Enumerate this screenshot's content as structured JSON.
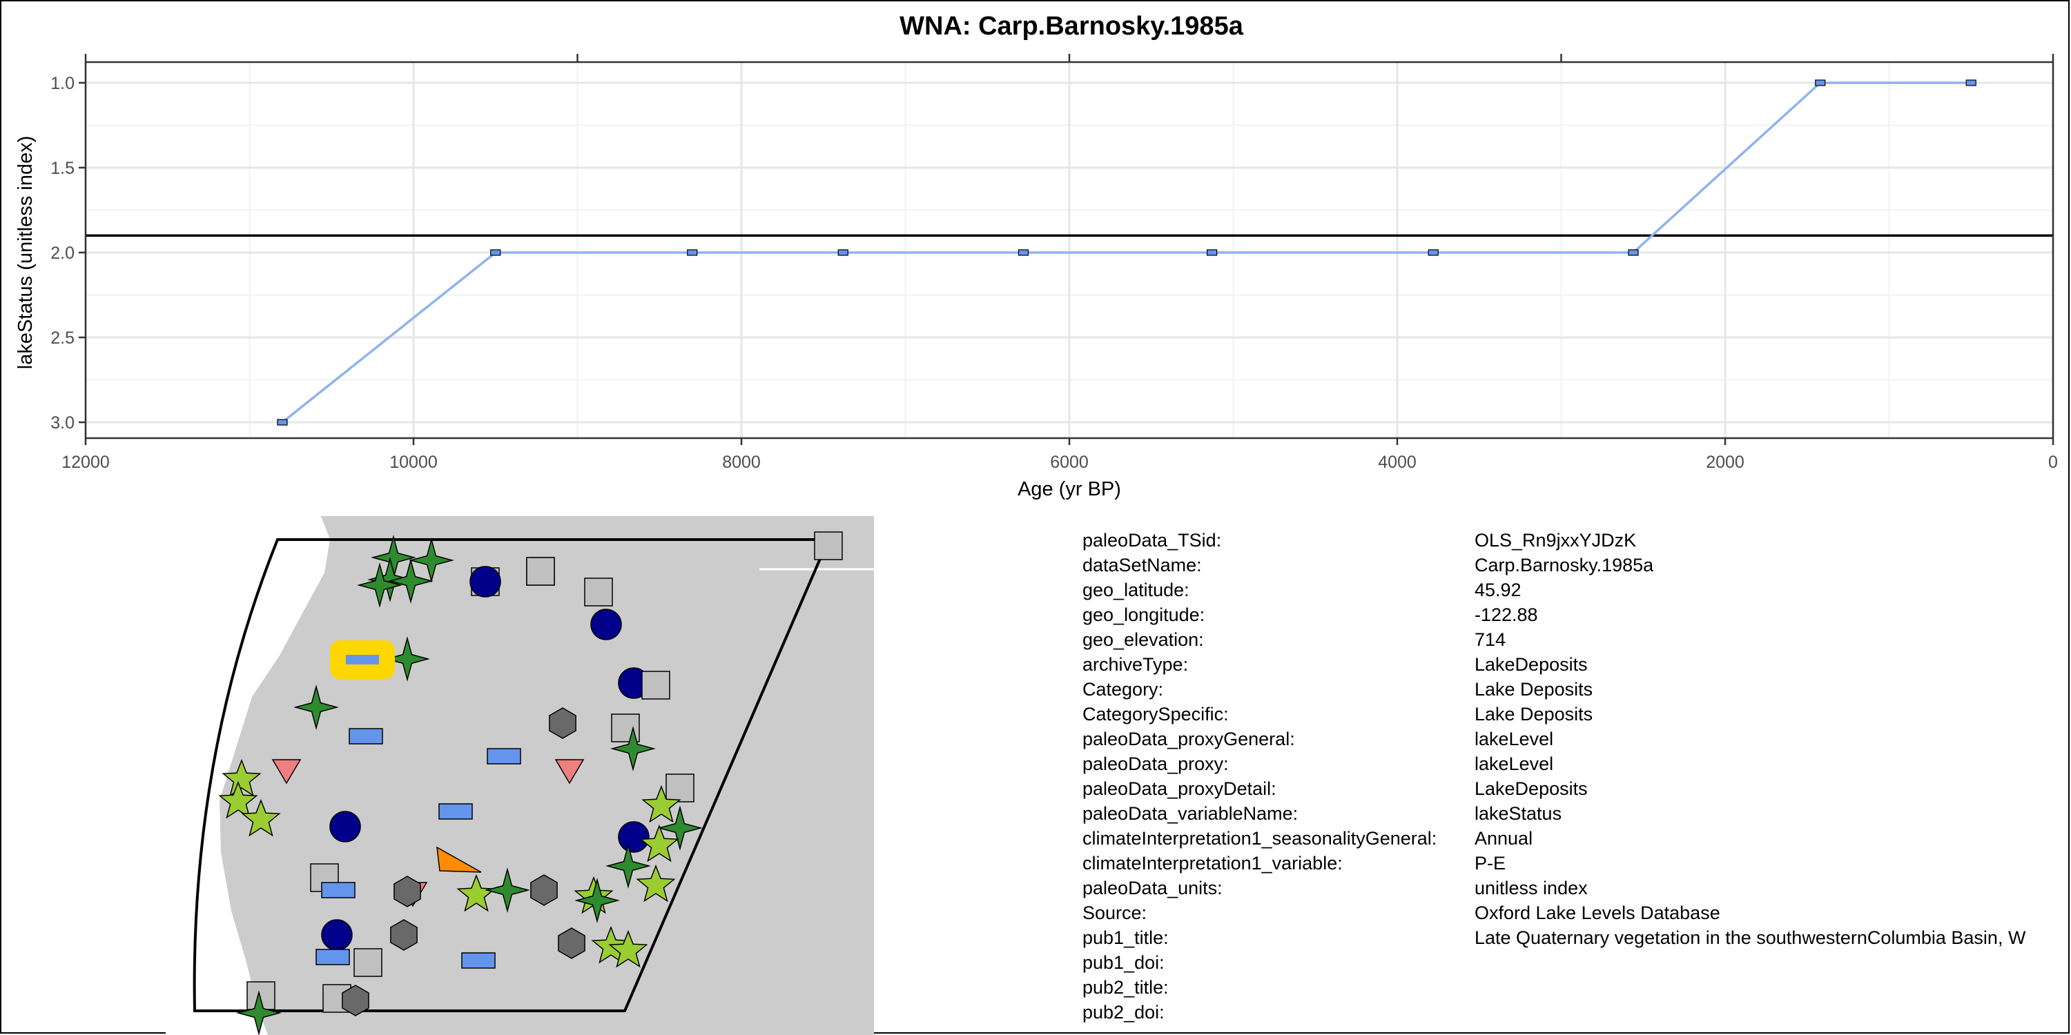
{
  "chart_data": {
    "type": "line",
    "title": "WNA: Carp.Barnosky.1985a",
    "xlabel": "Age (yr BP)",
    "ylabel": "lakeStatus (unitless index)",
    "xlim": [
      12000,
      0
    ],
    "ylim": [
      3.0,
      1.0
    ],
    "x_reversed": true,
    "y_reversed": true,
    "x_ticks": [
      12000,
      10000,
      8000,
      6000,
      4000,
      2000,
      0
    ],
    "x_tick_labels": [
      "12000",
      "10000",
      "8000",
      "6000",
      "4000",
      "2000",
      "0"
    ],
    "y_ticks": [
      1.0,
      1.5,
      2.0,
      2.5,
      3.0
    ],
    "y_tick_labels": [
      "1.0",
      "1.5",
      "2.0",
      "2.5",
      "3.0"
    ],
    "grid": true,
    "reference_line_y": 1.9,
    "line_color": "#8EB4EE",
    "marker_color": "#6495ED",
    "series": [
      {
        "x": [
          10800,
          9500,
          8300,
          7380,
          6280,
          5130,
          3780,
          2560,
          1420,
          500
        ],
        "y": [
          3.0,
          2.0,
          2.0,
          2.0,
          2.0,
          2.0,
          2.0,
          2.0,
          1.0,
          1.0
        ]
      }
    ]
  },
  "map": {
    "land_color": "#CCCCCC",
    "ocean_color": "#FFFFFF",
    "highlight_color": "#FFD700",
    "symbol_colors": {
      "lake": "#6495ED",
      "pollen": "#2E8B2E",
      "tree": "#9ACD32",
      "speleothem": "#00008B",
      "other": "#C0C0C0",
      "marine": "#696969",
      "glacier": "#F08080",
      "midden": "#FF8C00"
    }
  },
  "metadata": [
    {
      "key": "paleoData_TSid:",
      "value": "OLS_Rn9jxxYJDzK"
    },
    {
      "key": "dataSetName:",
      "value": "Carp.Barnosky.1985a"
    },
    {
      "key": "geo_latitude:",
      "value": "45.92"
    },
    {
      "key": "geo_longitude:",
      "value": "-122.88"
    },
    {
      "key": "geo_elevation:",
      "value": "714"
    },
    {
      "key": "archiveType:",
      "value": "LakeDeposits"
    },
    {
      "key": "Category:",
      "value": "Lake Deposits"
    },
    {
      "key": "CategorySpecific:",
      "value": "Lake Deposits"
    },
    {
      "key": "paleoData_proxyGeneral:",
      "value": "lakeLevel"
    },
    {
      "key": "paleoData_proxy:",
      "value": "lakeLevel"
    },
    {
      "key": "paleoData_proxyDetail:",
      "value": "LakeDeposits"
    },
    {
      "key": "paleoData_variableName:",
      "value": "lakeStatus"
    },
    {
      "key": "climateInterpretation1_seasonalityGeneral:",
      "value": "Annual"
    },
    {
      "key": "climateInterpretation1_variable:",
      "value": "P-E"
    },
    {
      "key": "paleoData_units:",
      "value": "unitless index"
    },
    {
      "key": "Source:",
      "value": "Oxford Lake Levels Database"
    },
    {
      "key": "pub1_title:",
      "value": "Late Quaternary vegetation in the southwesternColumbia Basin, W"
    },
    {
      "key": "pub1_doi:",
      "value": ""
    },
    {
      "key": "pub2_title:",
      "value": ""
    },
    {
      "key": "pub2_doi:",
      "value": ""
    }
  ]
}
